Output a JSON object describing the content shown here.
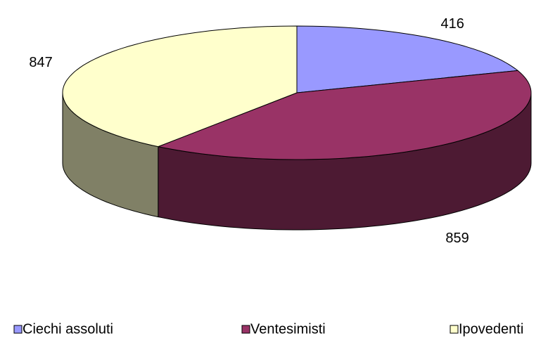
{
  "chart_data": {
    "type": "pie",
    "categories": [
      "Ciechi assoluti",
      "Ventesimisti",
      "Ipovedenti"
    ],
    "values": [
      416,
      859,
      847
    ],
    "colors": [
      "#9999ff",
      "#993366",
      "#ffffcc"
    ],
    "legend": "bottom"
  }
}
